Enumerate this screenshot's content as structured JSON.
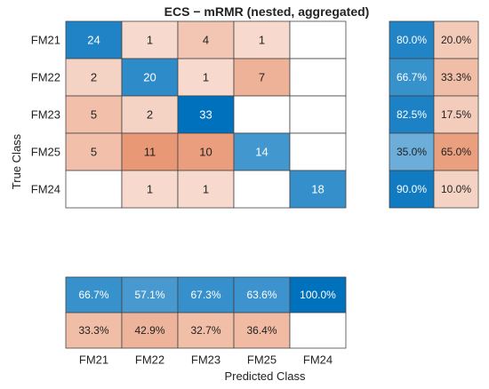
{
  "chart_data": {
    "type": "heatmap",
    "title": "ECS − mRMR (nested, aggregated)",
    "xlabel": "Predicted Class",
    "ylabel": "True Class",
    "true_classes": [
      "FM21",
      "FM22",
      "FM23",
      "FM25",
      "FM24"
    ],
    "predicted_classes": [
      "FM21",
      "FM22",
      "FM23",
      "FM25",
      "FM24"
    ],
    "matrix": [
      [
        24,
        1,
        4,
        1,
        0
      ],
      [
        2,
        20,
        1,
        7,
        0
      ],
      [
        5,
        2,
        33,
        0,
        0
      ],
      [
        5,
        11,
        10,
        14,
        0
      ],
      [
        0,
        1,
        1,
        0,
        18
      ]
    ],
    "row_summary": [
      [
        "80.0%",
        "20.0%"
      ],
      [
        "66.7%",
        "33.3%"
      ],
      [
        "82.5%",
        "17.5%"
      ],
      [
        "35.0%",
        "65.0%"
      ],
      [
        "90.0%",
        "10.0%"
      ]
    ],
    "column_summary": [
      [
        "66.7%",
        "57.1%",
        "67.3%",
        "63.6%",
        "100.0%"
      ],
      [
        "33.3%",
        "42.9%",
        "32.7%",
        "36.4%",
        ""
      ]
    ],
    "colors": {
      "correct_dark": "#0072BD",
      "incorrect_dark": "#D95319",
      "empty": "#ffffff"
    }
  }
}
